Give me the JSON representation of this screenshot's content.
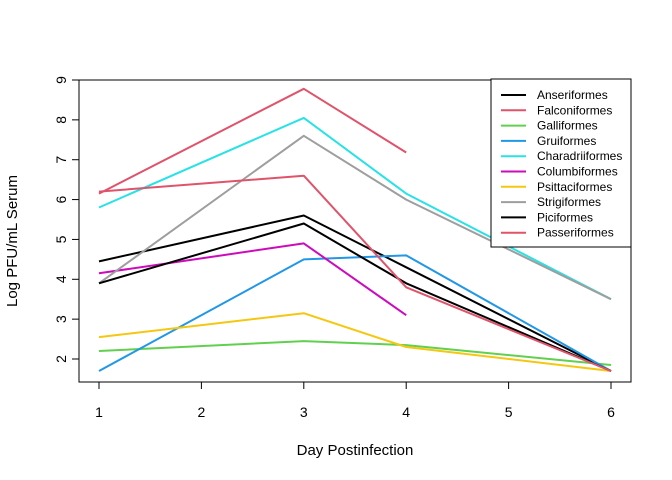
{
  "chart_data": {
    "type": "line",
    "xlabel": "Day Postinfection",
    "ylabel": "Log PFU/mL Serum",
    "xlim": [
      1,
      6
    ],
    "ylim": [
      1.45,
      9.0
    ],
    "xticks": [
      1,
      2,
      3,
      4,
      5,
      6
    ],
    "yticks": [
      2,
      3,
      4,
      5,
      6,
      7,
      8,
      9
    ],
    "grid": false,
    "legend_position": "top-right",
    "series": [
      {
        "name": "Anseriformes",
        "color": "#000000",
        "x": [
          1,
          3,
          4,
          6
        ],
        "y": [
          4.45,
          5.6,
          4.3,
          1.7
        ]
      },
      {
        "name": "Falconiformes",
        "color": "#DF536B",
        "x": [
          1,
          3,
          4
        ],
        "y": [
          6.15,
          8.78,
          7.18
        ]
      },
      {
        "name": "Galliformes",
        "color": "#61D04F",
        "x": [
          1,
          3,
          4,
          6
        ],
        "y": [
          2.2,
          2.45,
          2.35,
          1.85
        ]
      },
      {
        "name": "Gruiformes",
        "color": "#2297E6",
        "x": [
          1,
          3,
          4,
          6
        ],
        "y": [
          1.7,
          4.5,
          4.6,
          1.7
        ]
      },
      {
        "name": "Charadriiformes",
        "color": "#28E2E5",
        "x": [
          1,
          3,
          4,
          6
        ],
        "y": [
          5.8,
          8.05,
          6.15,
          3.5
        ]
      },
      {
        "name": "Columbiformes",
        "color": "#CD0BBC",
        "x": [
          1,
          3,
          4
        ],
        "y": [
          4.15,
          4.9,
          3.1
        ]
      },
      {
        "name": "Psittaciformes",
        "color": "#F5C710",
        "x": [
          1,
          3,
          4,
          6
        ],
        "y": [
          2.55,
          3.15,
          2.3,
          1.7
        ]
      },
      {
        "name": "Strigiformes",
        "color": "#9E9E9E",
        "x": [
          1,
          3,
          4,
          6
        ],
        "y": [
          3.9,
          7.6,
          6.0,
          3.5
        ]
      },
      {
        "name": "Piciformes",
        "color": "#000000",
        "x": [
          1,
          3,
          4,
          6
        ],
        "y": [
          3.9,
          5.4,
          3.9,
          1.7
        ]
      },
      {
        "name": "Passeriformes",
        "color": "#DF536B",
        "x": [
          1,
          3,
          4,
          6
        ],
        "y": [
          6.2,
          6.6,
          3.8,
          1.7
        ]
      }
    ]
  }
}
